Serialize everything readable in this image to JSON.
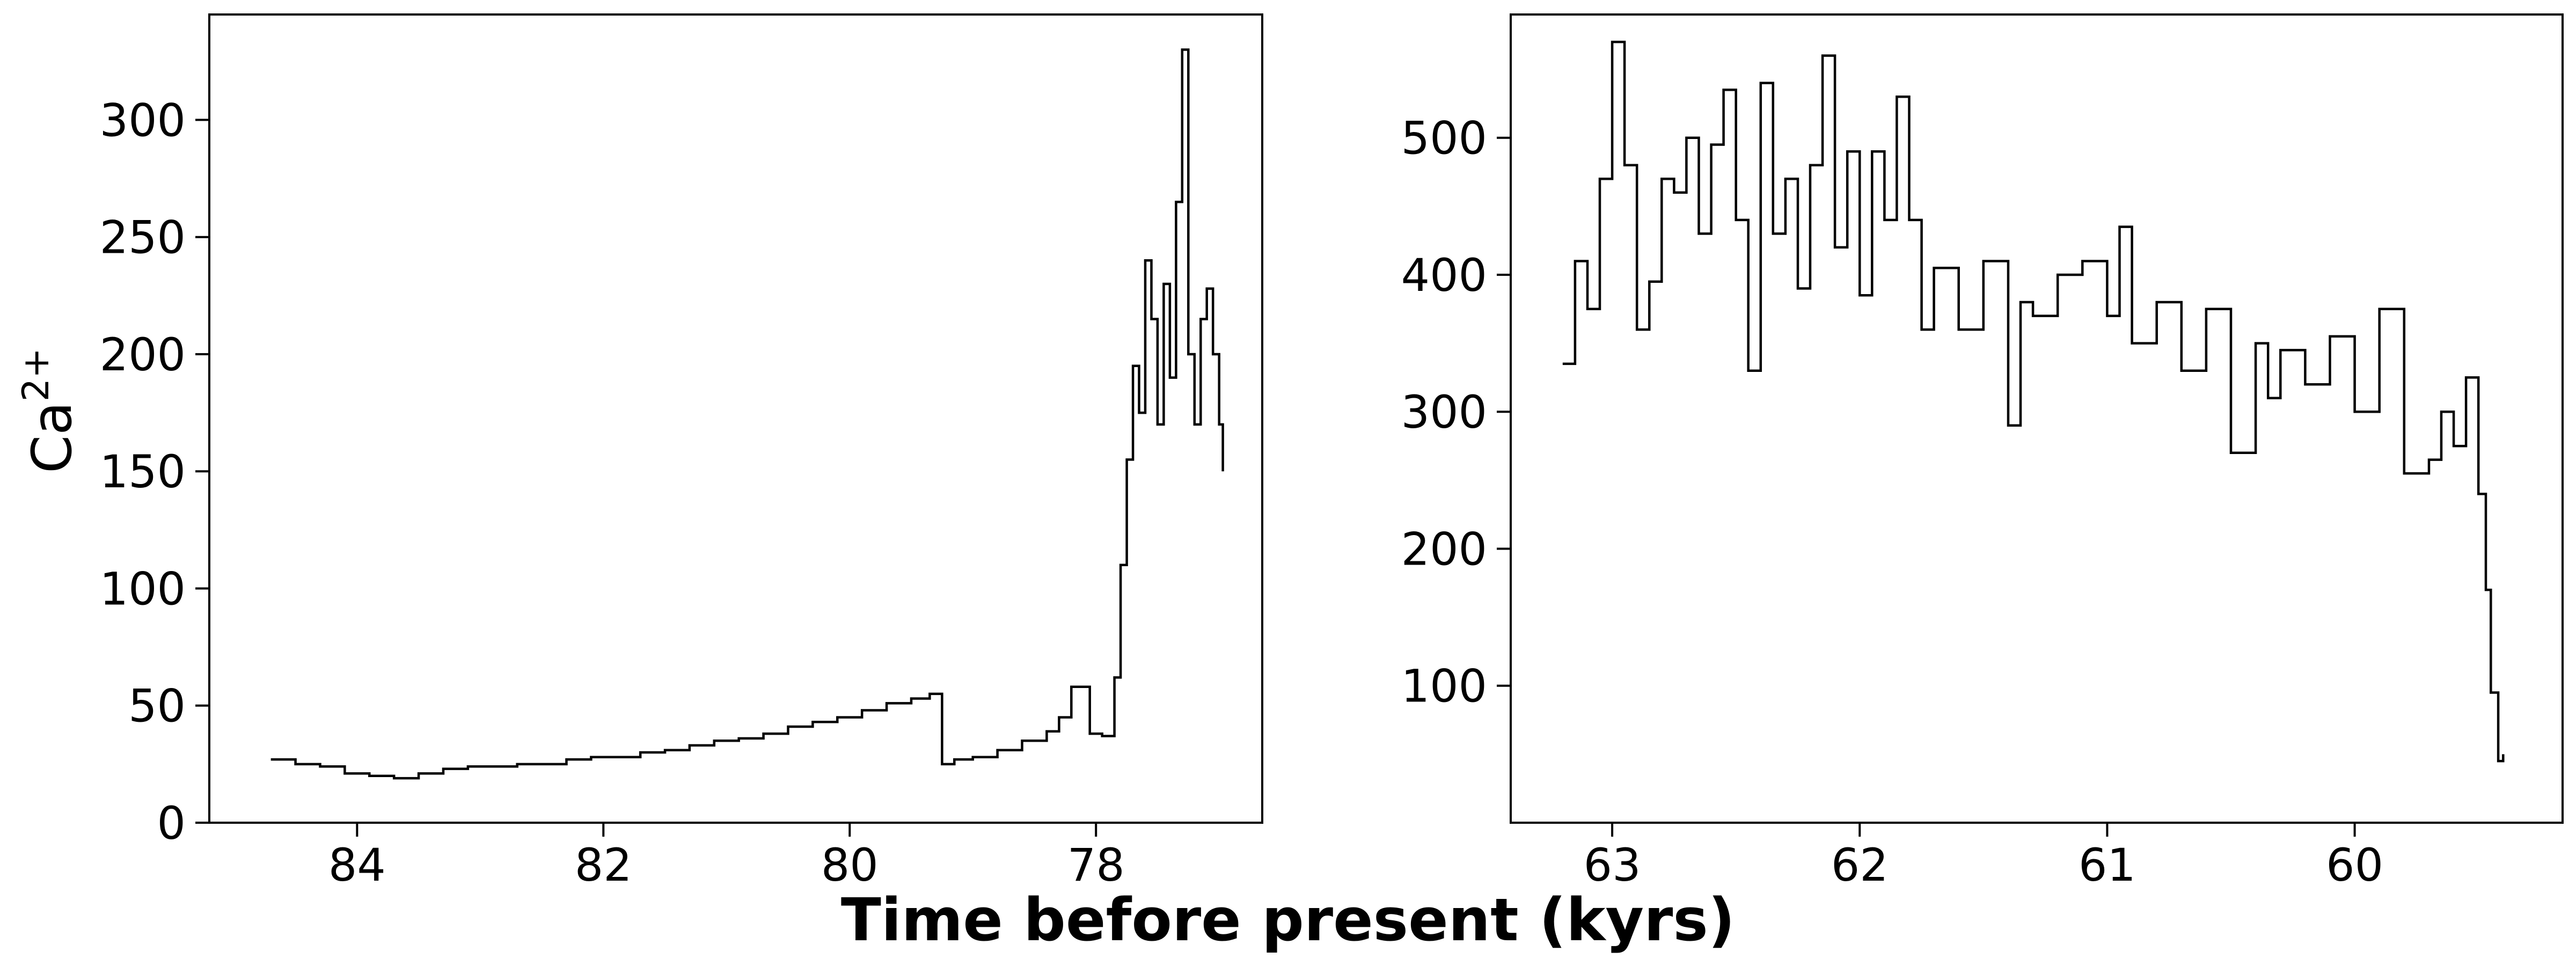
{
  "figure": {
    "xlabel": "Time before present (kyrs)",
    "ylabel_base": "Ca",
    "ylabel_sup": "2+"
  },
  "chart_data": [
    {
      "type": "line",
      "style": "step",
      "color": "#000000",
      "xlabel": "Time before present (kyrs)",
      "ylabel": "Ca2+",
      "x_reversed": true,
      "xlim": [
        85.2,
        76.65
      ],
      "ylim": [
        0,
        345
      ],
      "x_ticks": [
        84,
        82,
        80,
        78
      ],
      "y_ticks": [
        0,
        50,
        100,
        150,
        200,
        250,
        300
      ],
      "grid": false,
      "series": [
        {
          "x": [
            84.7,
            84.5,
            84.3,
            84.1,
            83.9,
            83.7,
            83.5,
            83.3,
            83.1,
            82.9,
            82.7,
            82.5,
            82.3,
            82.1,
            81.9,
            81.7,
            81.5,
            81.3,
            81.1,
            80.9,
            80.7,
            80.5,
            80.3,
            80.1,
            79.9,
            79.7,
            79.5,
            79.35,
            79.25,
            79.15,
            79.0,
            78.8,
            78.6,
            78.4,
            78.3,
            78.2,
            78.05,
            77.95,
            77.85,
            77.8,
            77.75,
            77.7,
            77.65,
            77.6,
            77.55,
            77.5,
            77.45,
            77.4,
            77.35,
            77.3,
            77.25,
            77.2,
            77.15,
            77.1,
            77.05,
            77.0,
            76.97
          ],
          "y": [
            27,
            25,
            24,
            21,
            20,
            19,
            21,
            23,
            24,
            24,
            25,
            25,
            27,
            28,
            28,
            30,
            31,
            33,
            35,
            36,
            38,
            41,
            43,
            45,
            48,
            51,
            53,
            55,
            25,
            27,
            28,
            31,
            35,
            39,
            45,
            58,
            38,
            37,
            62,
            110,
            155,
            195,
            175,
            240,
            215,
            170,
            230,
            190,
            265,
            330,
            200,
            170,
            215,
            228,
            200,
            170,
            150
          ]
        }
      ]
    },
    {
      "type": "line",
      "style": "step",
      "color": "#000000",
      "xlabel": "Time before present (kyrs)",
      "ylabel": "",
      "x_reversed": true,
      "xlim": [
        63.41,
        59.16
      ],
      "ylim": [
        0,
        590
      ],
      "x_ticks": [
        63,
        62,
        61,
        60
      ],
      "y_ticks": [
        100,
        200,
        300,
        400,
        500
      ],
      "grid": false,
      "series": [
        {
          "x": [
            63.2,
            63.15,
            63.1,
            63.05,
            63.0,
            62.95,
            62.9,
            62.85,
            62.8,
            62.75,
            62.7,
            62.65,
            62.6,
            62.55,
            62.5,
            62.45,
            62.4,
            62.35,
            62.3,
            62.25,
            62.2,
            62.15,
            62.1,
            62.05,
            62.0,
            61.95,
            61.9,
            61.85,
            61.8,
            61.75,
            61.7,
            61.6,
            61.5,
            61.4,
            61.35,
            61.3,
            61.2,
            61.1,
            61.0,
            60.95,
            60.9,
            60.8,
            60.7,
            60.6,
            60.5,
            60.4,
            60.35,
            60.3,
            60.2,
            60.1,
            60.0,
            59.9,
            59.8,
            59.7,
            59.65,
            59.6,
            59.55,
            59.5,
            59.47,
            59.45,
            59.42,
            59.4
          ],
          "y": [
            335,
            410,
            375,
            470,
            570,
            480,
            360,
            395,
            470,
            460,
            500,
            430,
            495,
            535,
            440,
            330,
            540,
            430,
            470,
            390,
            480,
            560,
            420,
            490,
            385,
            490,
            440,
            530,
            440,
            360,
            405,
            360,
            410,
            290,
            380,
            370,
            400,
            410,
            370,
            435,
            350,
            380,
            330,
            375,
            270,
            350,
            310,
            345,
            320,
            355,
            300,
            375,
            255,
            265,
            300,
            275,
            325,
            240,
            170,
            95,
            45,
            50
          ]
        }
      ]
    }
  ]
}
